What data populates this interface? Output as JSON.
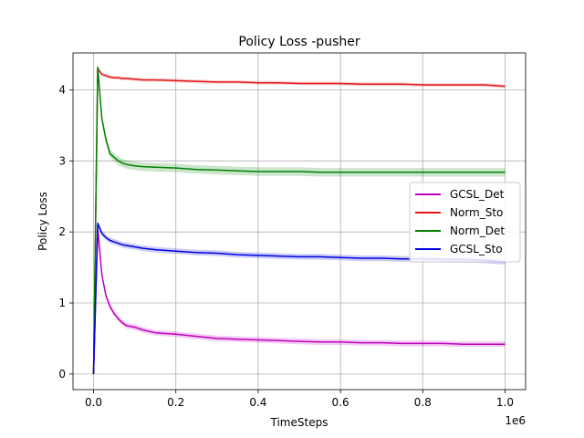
{
  "chart_data": {
    "type": "line",
    "title": "Policy Loss -pusher",
    "xlabel": "TimeSteps",
    "ylabel": "Policy Loss",
    "x_offset_label": "1e6",
    "xlim": [
      -0.05,
      1.05
    ],
    "ylim": [
      -0.22,
      4.52
    ],
    "xticks": [
      0.0,
      0.2,
      0.4,
      0.6,
      0.8,
      1.0
    ],
    "xtick_labels": [
      "0.0",
      "0.2",
      "0.4",
      "0.6",
      "0.8",
      "1.0"
    ],
    "yticks": [
      0,
      1,
      2,
      3,
      4
    ],
    "ytick_labels": [
      "0",
      "1",
      "2",
      "3",
      "4"
    ],
    "grid": true,
    "legend_position": "center-right",
    "x": [
      0.0,
      0.01,
      0.02,
      0.03,
      0.04,
      0.05,
      0.06,
      0.07,
      0.08,
      0.1,
      0.12,
      0.15,
      0.2,
      0.25,
      0.3,
      0.35,
      0.4,
      0.45,
      0.5,
      0.55,
      0.6,
      0.65,
      0.7,
      0.75,
      0.8,
      0.85,
      0.9,
      0.95,
      1.0
    ],
    "series": [
      {
        "name": "GCSL_Det",
        "color": "#bf00bf",
        "band": 0.04,
        "values": [
          0.0,
          2.05,
          1.4,
          1.1,
          0.95,
          0.85,
          0.78,
          0.72,
          0.68,
          0.66,
          0.62,
          0.58,
          0.56,
          0.53,
          0.5,
          0.49,
          0.48,
          0.47,
          0.46,
          0.45,
          0.45,
          0.44,
          0.44,
          0.43,
          0.43,
          0.43,
          0.42,
          0.42,
          0.42
        ]
      },
      {
        "name": "Norm_Sto",
        "color": "#e31a1c",
        "band": 0.025,
        "values": [
          0.0,
          4.3,
          4.22,
          4.2,
          4.18,
          4.17,
          4.17,
          4.16,
          4.16,
          4.15,
          4.14,
          4.14,
          4.13,
          4.12,
          4.11,
          4.11,
          4.1,
          4.1,
          4.09,
          4.09,
          4.09,
          4.08,
          4.08,
          4.08,
          4.07,
          4.07,
          4.07,
          4.07,
          4.05
        ]
      },
      {
        "name": "Norm_Det",
        "color": "#008000",
        "band": 0.06,
        "values": [
          0.0,
          4.32,
          3.6,
          3.3,
          3.1,
          3.05,
          3.0,
          2.97,
          2.95,
          2.93,
          2.92,
          2.91,
          2.9,
          2.88,
          2.87,
          2.86,
          2.85,
          2.85,
          2.85,
          2.84,
          2.84,
          2.84,
          2.84,
          2.84,
          2.84,
          2.84,
          2.84,
          2.84,
          2.84
        ]
      },
      {
        "name": "GCSL_Sto",
        "color": "#0000e0",
        "band": 0.04,
        "values": [
          0.0,
          2.12,
          1.98,
          1.92,
          1.88,
          1.86,
          1.84,
          1.82,
          1.81,
          1.79,
          1.77,
          1.75,
          1.73,
          1.71,
          1.7,
          1.68,
          1.67,
          1.66,
          1.65,
          1.65,
          1.64,
          1.63,
          1.63,
          1.62,
          1.62,
          1.61,
          1.61,
          1.6,
          1.58
        ]
      }
    ]
  }
}
